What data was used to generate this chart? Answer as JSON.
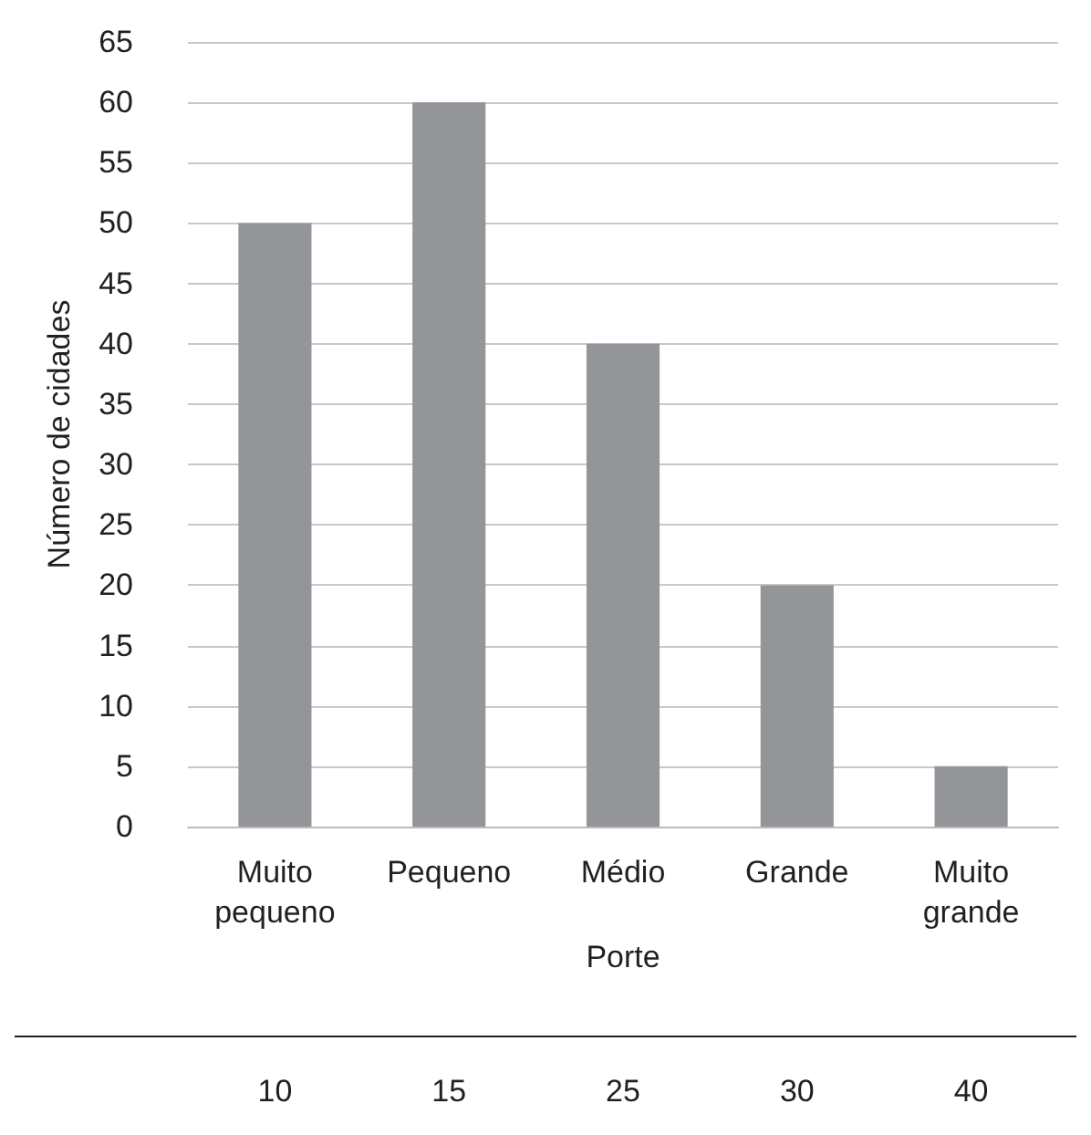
{
  "chart_data": {
    "type": "bar",
    "xlabel": "Porte",
    "ylabel": "Número de cidades",
    "categories": [
      "Muito pequeno",
      "Pequeno",
      "Médio",
      "Grande",
      "Muito grande"
    ],
    "values": [
      50,
      60,
      40,
      20,
      5
    ],
    "color": "#939598",
    "ylim": [
      0,
      65
    ],
    "yticks": [
      0,
      5,
      10,
      15,
      20,
      25,
      30,
      35,
      40,
      45,
      50,
      55,
      60,
      65
    ],
    "grid": "y",
    "annotations": [
      "10",
      "15",
      "25",
      "30",
      "40"
    ]
  }
}
